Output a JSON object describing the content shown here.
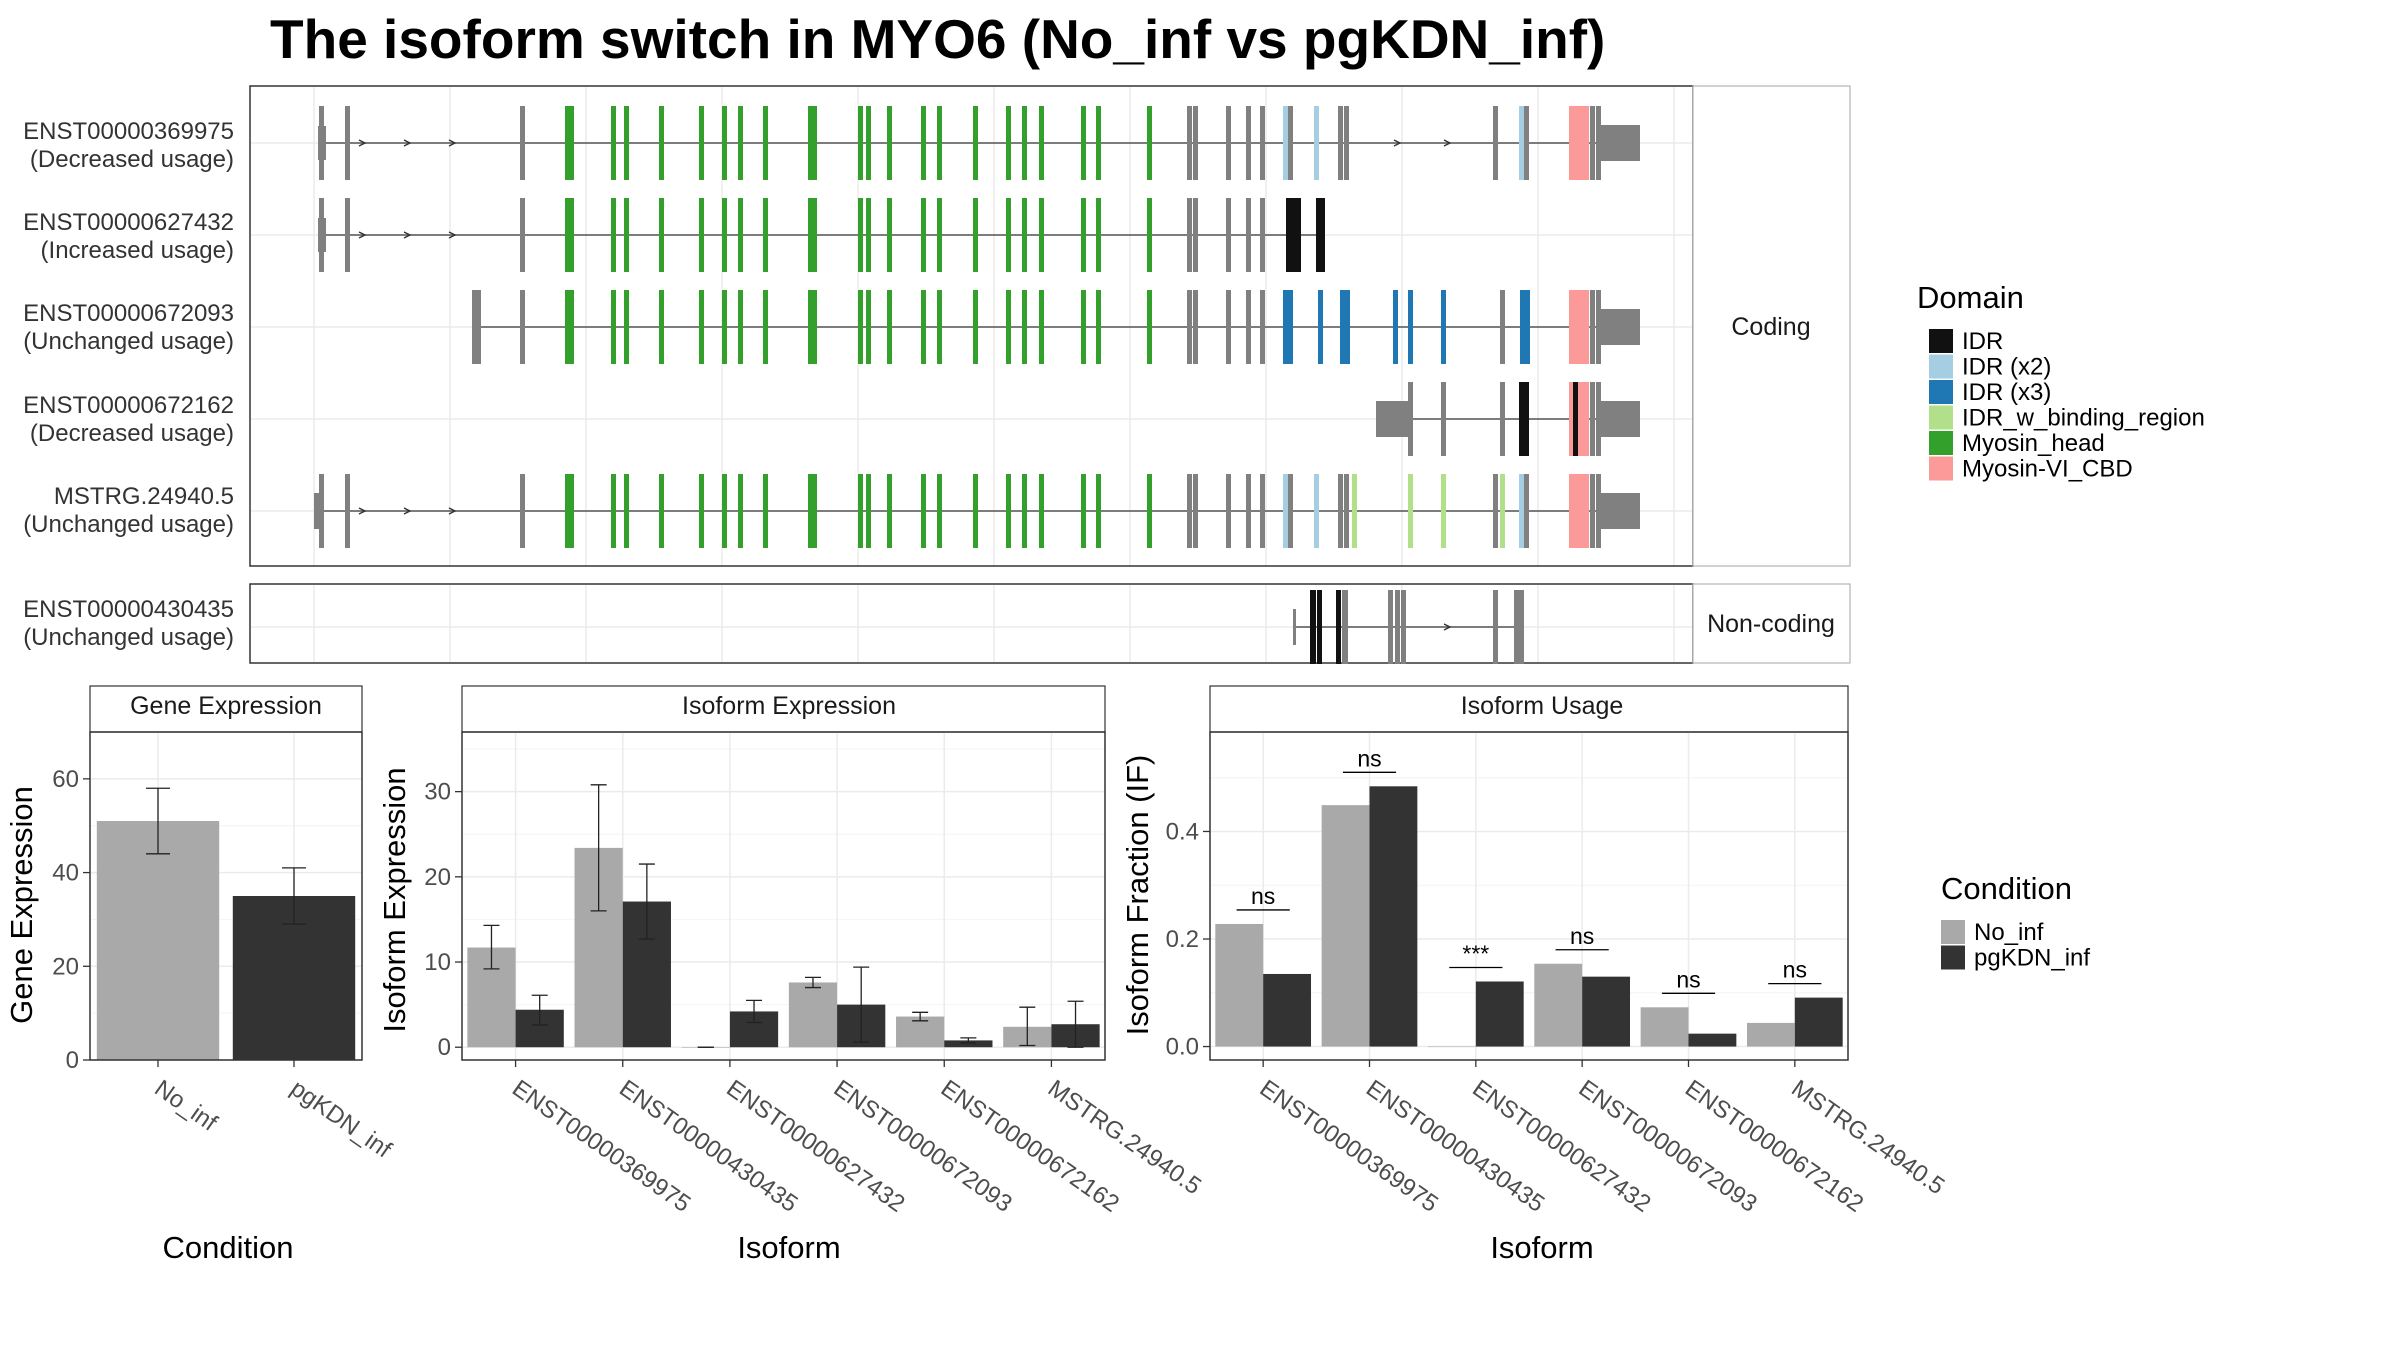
{
  "title": "The isoform switch in MYO6 (No_inf vs pgKDN_inf)",
  "colors": {
    "No_inf": "#a9a9a9",
    "pgKDN_inf": "#333333",
    "exon_plain": "#808080",
    "IDR": "#111111",
    "IDR (x2)": "#a6cee3",
    "IDR (x3)": "#1f78b4",
    "IDR_w_binding_region": "#b2df8a",
    "Myosin_head": "#33a02c",
    "Myosin-VI_CBD": "#fb9a99"
  },
  "structure": {
    "coding_label": "Coding",
    "noncoding_label": "Non-coding",
    "coding_isoforms": [
      {
        "id": "ENST00000369975",
        "usage": "(Decreased usage)"
      },
      {
        "id": "ENST00000627432",
        "usage": "(Increased usage)"
      },
      {
        "id": "ENST00000672093",
        "usage": "(Unchanged usage)"
      },
      {
        "id": "ENST00000672162",
        "usage": "(Decreased usage)"
      },
      {
        "id": "MSTRG.24940.5",
        "usage": "(Unchanged usage)"
      }
    ],
    "noncoding_isoforms": [
      {
        "id": "ENST00000430435",
        "usage": "(Unchanged usage)"
      }
    ]
  },
  "legend_domain": {
    "title": "Domain",
    "items": [
      "IDR",
      "IDR (x2)",
      "IDR (x3)",
      "IDR_w_binding_region",
      "Myosin_head",
      "Myosin-VI_CBD"
    ]
  },
  "legend_condition": {
    "title": "Condition",
    "items": [
      "No_inf",
      "pgKDN_inf"
    ]
  },
  "chart_data": [
    {
      "type": "bar",
      "title": "Gene Expression",
      "xlabel": "Condition",
      "ylabel": "Gene Expression",
      "categories": [
        "No_inf",
        "pgKDN_inf"
      ],
      "values": [
        51,
        35
      ],
      "error_low": [
        44,
        29
      ],
      "error_high": [
        58,
        41
      ],
      "ylim": [
        0,
        70
      ],
      "yticks": [
        0,
        20,
        40,
        60
      ],
      "grid": true
    },
    {
      "type": "bar",
      "title": "Isoform Expression",
      "xlabel": "Isoform",
      "ylabel": "Isoform Expression",
      "categories": [
        "ENST00000369975",
        "ENST00000430435",
        "ENST00000627432",
        "ENST00000672093",
        "ENST00000672162",
        "MSTRG.24940.5"
      ],
      "series": [
        {
          "name": "No_inf",
          "values": [
            11.7,
            23.4,
            0,
            7.6,
            3.6,
            2.4
          ],
          "error_low": [
            9.2,
            16,
            0,
            7,
            3.1,
            0.2
          ],
          "error_high": [
            14.3,
            30.8,
            0,
            8.2,
            4.1,
            4.7
          ]
        },
        {
          "name": "pgKDN_inf",
          "values": [
            4.4,
            17.1,
            4.2,
            5,
            0.8,
            2.7
          ],
          "error_low": [
            2.6,
            12.7,
            2.9,
            0.6,
            0.5,
            0
          ],
          "error_high": [
            6.1,
            21.5,
            5.5,
            9.4,
            1.1,
            5.4
          ]
        }
      ],
      "ylim": [
        -1.5,
        37
      ],
      "yticks": [
        0,
        10,
        20,
        30
      ],
      "grid": true
    },
    {
      "type": "bar",
      "title": "Isoform Usage",
      "xlabel": "Isoform",
      "ylabel": "Isoform Fraction (IF)",
      "categories": [
        "ENST00000369975",
        "ENST00000430435",
        "ENST00000627432",
        "ENST00000672093",
        "ENST00000672162",
        "MSTRG.24940.5"
      ],
      "series": [
        {
          "name": "No_inf",
          "values": [
            0.228,
            0.449,
            0.0,
            0.154,
            0.073,
            0.044
          ]
        },
        {
          "name": "pgKDN_inf",
          "values": [
            0.135,
            0.484,
            0.121,
            0.13,
            0.024,
            0.091
          ]
        }
      ],
      "significance": [
        "ns",
        "ns",
        "***",
        "ns",
        "ns",
        "ns"
      ],
      "ylim": [
        -0.025,
        0.585
      ],
      "yticks": [
        0.0,
        0.2,
        0.4
      ],
      "grid": true
    }
  ]
}
